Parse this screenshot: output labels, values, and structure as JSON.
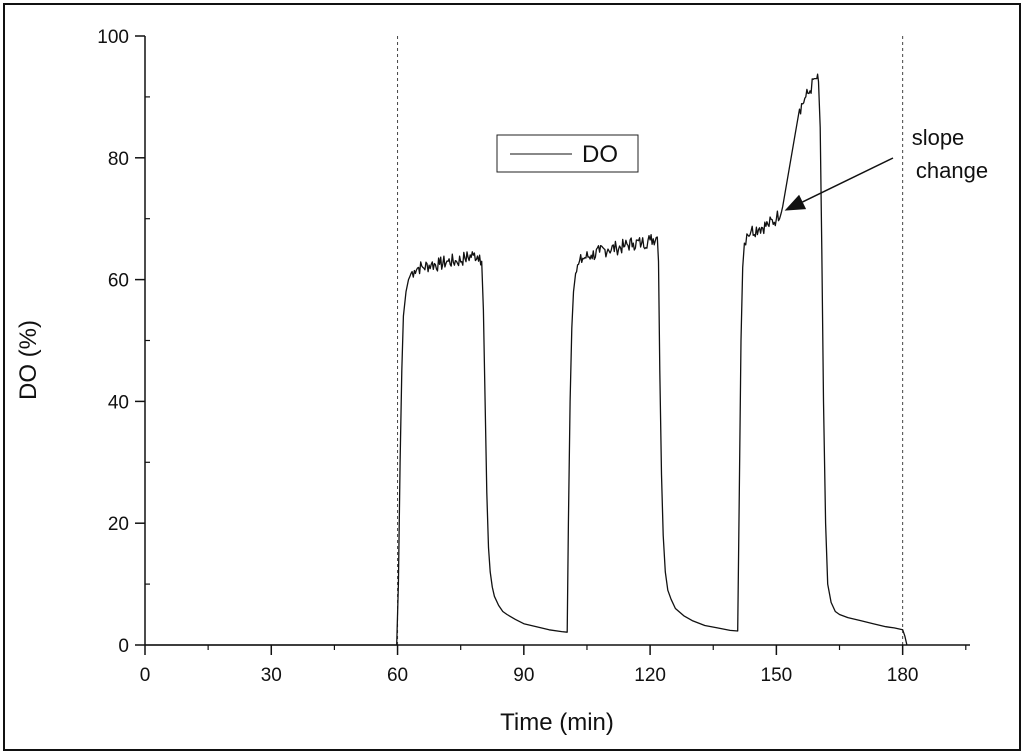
{
  "chart_data": {
    "type": "line",
    "title": "",
    "xlabel": "Time (min)",
    "ylabel": "DO (%)",
    "xlim": [
      0,
      196
    ],
    "ylim": [
      0,
      100
    ],
    "xticks": [
      0,
      30,
      60,
      90,
      120,
      150,
      180
    ],
    "yticks": [
      0,
      20,
      40,
      60,
      80,
      100
    ],
    "xtick_labels": [
      "0",
      "30",
      "60",
      "90",
      "120",
      "150",
      "180"
    ],
    "ytick_labels": [
      "0",
      "20",
      "40",
      "60",
      "80",
      "100"
    ],
    "x_minor_step": 15,
    "y_minor_step": 10,
    "reference_lines_x": [
      60,
      180
    ],
    "legend": {
      "position": "top-center",
      "entries": [
        "DO"
      ]
    },
    "annotation": {
      "lines": [
        "slope",
        "change"
      ],
      "points_to": {
        "x": 151,
        "y": 71
      }
    },
    "series": [
      {
        "name": "DO",
        "color": "#111111",
        "x": [
          0,
          59.8,
          60.2,
          60.6,
          61.0,
          61.4,
          62.0,
          62.6,
          63.2,
          64.0,
          65.0,
          66.0,
          68.0,
          70.0,
          72.0,
          74.0,
          76.0,
          78.0,
          79.5,
          80.0,
          80.4,
          80.8,
          81.2,
          81.6,
          82.0,
          82.5,
          83.0,
          84.0,
          85.0,
          86.0,
          88.0,
          90.0,
          93.0,
          96.0,
          99.0,
          100.3,
          100.6,
          101.0,
          101.4,
          101.8,
          102.3,
          103.0,
          104.0,
          106.0,
          108.0,
          110.0,
          112.0,
          114.0,
          116.0,
          118.0,
          120.0,
          121.7,
          122.0,
          122.3,
          122.7,
          123.1,
          123.6,
          124.2,
          125.0,
          126.0,
          128.0,
          130.0,
          133.0,
          136.0,
          139.0,
          140.8,
          141.2,
          141.6,
          142.0,
          142.4,
          143.0,
          144.0,
          146.0,
          148.0,
          150.0,
          151.5,
          153.0,
          154.5,
          155.5,
          157.0,
          158.0,
          159.0,
          159.6,
          160.0,
          160.4,
          160.8,
          161.2,
          161.7,
          162.2,
          163.0,
          164.0,
          165.0,
          167.0,
          170.0,
          173.0,
          176.0,
          178.0,
          180.0,
          180.5,
          181.0
        ],
        "y": [
          0,
          0,
          10,
          30,
          45,
          54,
          58,
          60,
          61,
          61.5,
          62,
          62,
          62.5,
          62.5,
          63,
          63,
          63.5,
          64,
          64,
          63,
          55,
          40,
          25,
          16,
          12,
          9.5,
          8,
          6.5,
          5.5,
          5,
          4.2,
          3.5,
          3,
          2.5,
          2.2,
          2.1,
          20,
          40,
          52,
          58,
          61,
          62.5,
          63.5,
          64,
          64.5,
          65,
          65.2,
          65.5,
          66,
          66,
          66.5,
          67,
          63,
          45,
          28,
          18,
          12,
          9,
          7.5,
          6,
          4.8,
          4,
          3.2,
          2.8,
          2.4,
          2.3,
          25,
          50,
          62,
          66,
          67.5,
          68,
          68.5,
          69,
          70,
          72,
          78,
          84,
          88,
          90,
          91,
          93,
          93,
          92.5,
          85,
          65,
          40,
          20,
          10,
          7,
          5.5,
          5,
          4.5,
          4,
          3.5,
          3,
          2.8,
          2.5,
          1.5,
          0
        ]
      }
    ]
  }
}
